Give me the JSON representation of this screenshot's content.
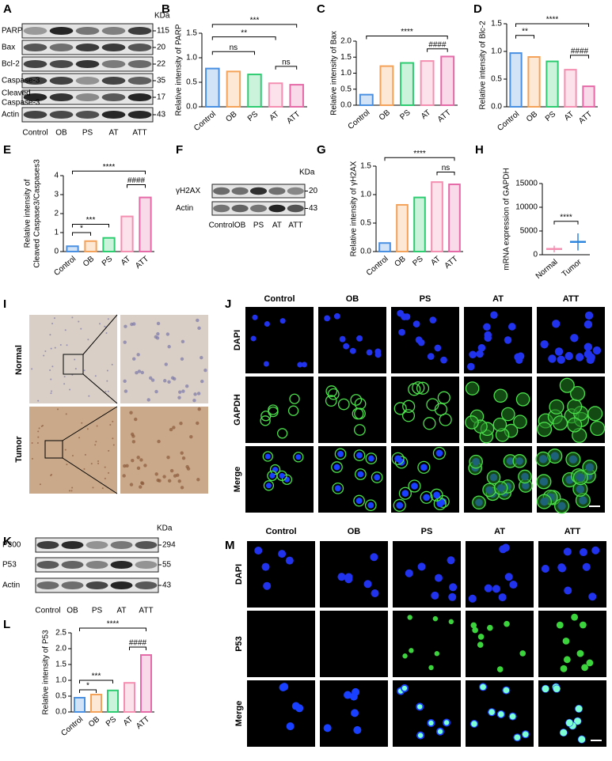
{
  "panel_labels": [
    "A",
    "B",
    "C",
    "D",
    "E",
    "F",
    "G",
    "H",
    "I",
    "J",
    "K",
    "L",
    "M"
  ],
  "blot_A": {
    "kda_header": "KDa",
    "lanes": [
      "Control",
      "OB",
      "PS",
      "AT",
      "ATT"
    ],
    "rows": [
      {
        "label": "PARP",
        "kda": "115"
      },
      {
        "label": "Bax",
        "kda": "20"
      },
      {
        "label": "Bcl-2",
        "kda": "22"
      },
      {
        "label": "Caspase-3",
        "kda": "35"
      },
      {
        "label": [
          "Cleaved",
          "Caspase-3"
        ],
        "kda": "17"
      },
      {
        "label": "Actin",
        "kda": "43"
      }
    ]
  },
  "blot_F": {
    "kda_header": "KDa",
    "lanes": [
      "Control",
      "OB",
      "PS",
      "AT",
      "ATT"
    ],
    "rows": [
      {
        "label": "γH2AX",
        "kda": "20"
      },
      {
        "label": "Actin",
        "kda": "43"
      }
    ]
  },
  "blot_K": {
    "kda_header": "KDa",
    "lanes": [
      "Control",
      "OB",
      "PS",
      "AT",
      "ATT"
    ],
    "rows": [
      {
        "label": "P300",
        "kda": "294"
      },
      {
        "label": "P53",
        "kda": "55"
      },
      {
        "label": "Actin",
        "kda": "43"
      }
    ]
  },
  "ihc_I": {
    "rows": [
      "Normal",
      "Tumor"
    ]
  },
  "if_J": {
    "columns": [
      "Control",
      "OB",
      "PS",
      "AT",
      "ATT"
    ],
    "rows": [
      "DAPI",
      "GAPDH",
      "Merge"
    ]
  },
  "if_M": {
    "columns": [
      "Control",
      "OB",
      "PS",
      "AT",
      "ATT"
    ],
    "rows": [
      "DAPI",
      "P53",
      "Merge"
    ]
  },
  "chart_data": [
    {
      "type": "bar",
      "ylabel": "Relative intensity of PARP",
      "categories": [
        "Control",
        "OB",
        "PS",
        "AT",
        "ATT"
      ],
      "values": [
        0.78,
        0.72,
        0.66,
        0.48,
        0.45
      ],
      "colors": [
        "#4a90e2",
        "#f4a259",
        "#2ecc71",
        "#f48fb1",
        "#e56aa8"
      ],
      "ylim": [
        0,
        1.5
      ],
      "yticks": [
        {
          "value": 0,
          "label": "0.0"
        },
        0.5,
        {
          "value": 1,
          "label": "1.0"
        },
        1.5
      ],
      "annotations": [
        "***",
        "**",
        "ns",
        "ns"
      ]
    },
    {
      "type": "bar",
      "ylabel": "Relative intensity of Bax",
      "categories": [
        "Control",
        "OB",
        "PS",
        "AT",
        "ATT"
      ],
      "values": [
        0.33,
        1.22,
        1.32,
        1.38,
        1.52
      ],
      "colors": [
        "#4a90e2",
        "#f4a259",
        "#2ecc71",
        "#f48fb1",
        "#e56aa8"
      ],
      "ylim": [
        0,
        2
      ],
      "yticks": [
        {
          "value": 0,
          "label": "0.0"
        },
        0.5,
        {
          "value": 1,
          "label": "1.0"
        },
        1.5,
        {
          "value": 2,
          "label": "2.0"
        }
      ],
      "annotations": [
        "****",
        "####"
      ]
    },
    {
      "type": "bar",
      "ylabel": "Relative intensity of Blc-2",
      "categories": [
        "Control",
        "OB",
        "PS",
        "AT",
        "ATT"
      ],
      "values": [
        0.97,
        0.9,
        0.82,
        0.67,
        0.37
      ],
      "colors": [
        "#4a90e2",
        "#f4a259",
        "#2ecc71",
        "#f48fb1",
        "#e56aa8"
      ],
      "ylim": [
        0,
        1.5
      ],
      "yticks": [
        {
          "value": 0,
          "label": "0.0"
        },
        0.5,
        {
          "value": 1,
          "label": "1.0"
        },
        1.5
      ],
      "annotations": [
        "****",
        "**",
        "####"
      ]
    },
    {
      "type": "bar",
      "ylabel": [
        "Relative intensity of",
        "Cleaved Caspase3/Caspases3"
      ],
      "categories": [
        "Control",
        "OB",
        "PS",
        "AT",
        "ATT"
      ],
      "values": [
        0.28,
        0.55,
        0.72,
        1.85,
        2.85
      ],
      "colors": [
        "#4a90e2",
        "#f4a259",
        "#2ecc71",
        "#f48fb1",
        "#e56aa8"
      ],
      "ylim": [
        0,
        4
      ],
      "yticks": [
        0,
        1,
        2,
        3,
        4
      ],
      "annotations": [
        "****",
        "####",
        "***",
        "*"
      ]
    },
    {
      "type": "bar",
      "ylabel": "Relative intensity of γH2AX",
      "categories": [
        "Control",
        "OB",
        "PS",
        "AT",
        "ATT"
      ],
      "values": [
        0.15,
        0.82,
        0.95,
        1.22,
        1.18
      ],
      "colors": [
        "#4a90e2",
        "#f4a259",
        "#2ecc71",
        "#f48fb1",
        "#e56aa8"
      ],
      "ylim": [
        0,
        1.5
      ],
      "yticks": [
        {
          "value": 0,
          "label": "0.0"
        },
        0.5,
        {
          "value": 1,
          "label": "1.0"
        },
        1.5
      ],
      "annotations": [
        "****",
        "ns"
      ]
    },
    {
      "type": "dot",
      "ylabel": "mRNA expression of GAPDH",
      "categories": [
        "Normal",
        "Tumor"
      ],
      "values": [
        1200,
        2700
      ],
      "errors": [
        700,
        1800
      ],
      "colors": [
        "#f48fb1",
        "#2e86de"
      ],
      "ylim": [
        0,
        15000
      ],
      "yticks": [
        0,
        5000,
        10000,
        15000
      ],
      "annotations": [
        "****"
      ]
    },
    {
      "type": "bar",
      "ylabel": "Relative intensity of P53",
      "categories": [
        "Control",
        "OB",
        "PS",
        "AT",
        "ATT"
      ],
      "values": [
        0.45,
        0.55,
        0.68,
        0.92,
        1.8
      ],
      "colors": [
        "#4a90e2",
        "#f4a259",
        "#2ecc71",
        "#f48fb1",
        "#e56aa8"
      ],
      "ylim": [
        0,
        2.5
      ],
      "yticks": [
        {
          "value": 0,
          "label": "0.0"
        },
        0.5,
        {
          "value": 1,
          "label": "1.0"
        },
        1.5,
        {
          "value": 2,
          "label": "2.0"
        },
        2.5
      ],
      "annotations": [
        "****",
        "####",
        "***",
        "*"
      ]
    }
  ]
}
